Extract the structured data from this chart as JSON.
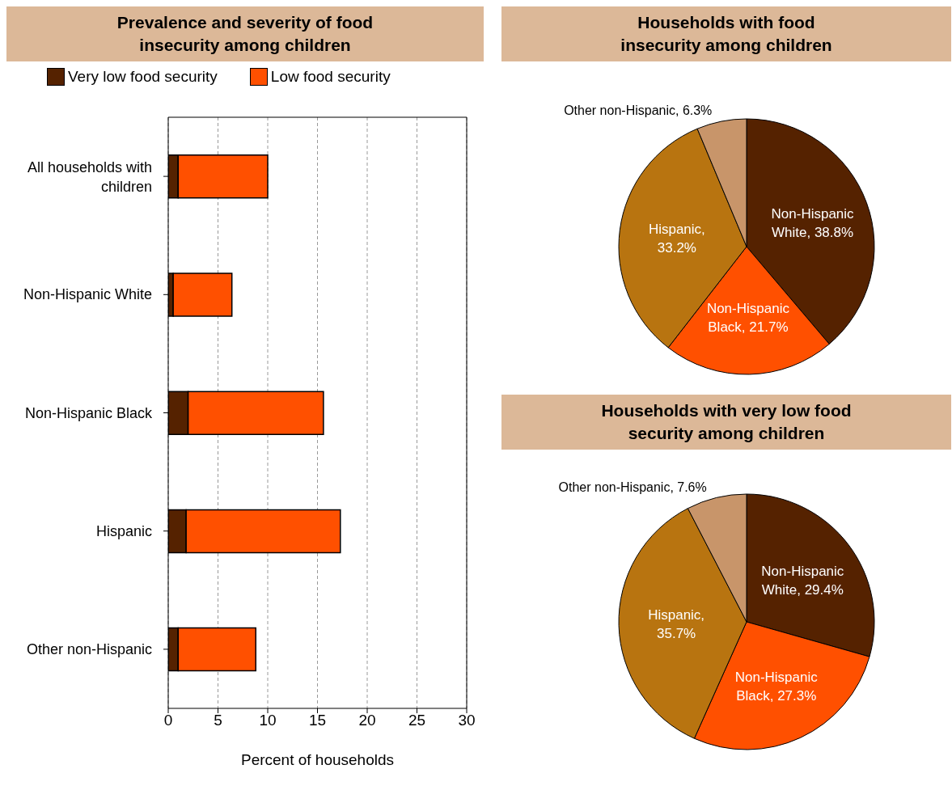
{
  "chart_data": [
    {
      "type": "bar",
      "title": "Prevalence and severity of food insecurity among children",
      "orientation": "horizontal",
      "stacked": true,
      "categories": [
        "All households with children",
        "Non-Hispanic White",
        "Non-Hispanic Black",
        "Hispanic",
        "Other non-Hispanic"
      ],
      "series": [
        {
          "name": "Very low food security",
          "color": "#552200",
          "values": [
            1.0,
            0.5,
            2.0,
            1.8,
            1.0
          ]
        },
        {
          "name": "Low food security",
          "color": "#ff5000",
          "values": [
            9.0,
            5.9,
            13.6,
            15.5,
            7.8
          ]
        }
      ],
      "xlabel": "Percent of households",
      "xlim": [
        0,
        30
      ],
      "xticks": [
        0,
        5,
        10,
        15,
        20,
        25,
        30
      ],
      "grid": "x",
      "legend": "top"
    },
    {
      "type": "pie",
      "title": "Households with food insecurity among children",
      "categories": [
        "Non-Hispanic White",
        "Non-Hispanic Black",
        "Hispanic",
        "Other non-Hispanic"
      ],
      "values": [
        38.8,
        21.7,
        33.2,
        6.3
      ],
      "colors": [
        "#552200",
        "#ff5000",
        "#b87410",
        "#c8956a"
      ],
      "value_labels": [
        ", 38.8%",
        ", 21.7%",
        ", 33.2%",
        ", 6.3%"
      ]
    },
    {
      "type": "pie",
      "title": "Households with very low food security among children",
      "categories": [
        "Non-Hispanic White",
        "Non-Hispanic Black",
        "Hispanic",
        "Other non-Hispanic"
      ],
      "values": [
        29.4,
        27.3,
        35.7,
        7.6
      ],
      "colors": [
        "#552200",
        "#ff5000",
        "#b87410",
        "#c8956a"
      ],
      "value_labels": [
        ", 29.4%",
        ", 27.3%",
        ", 35.7%",
        ", 7.6%"
      ]
    }
  ]
}
